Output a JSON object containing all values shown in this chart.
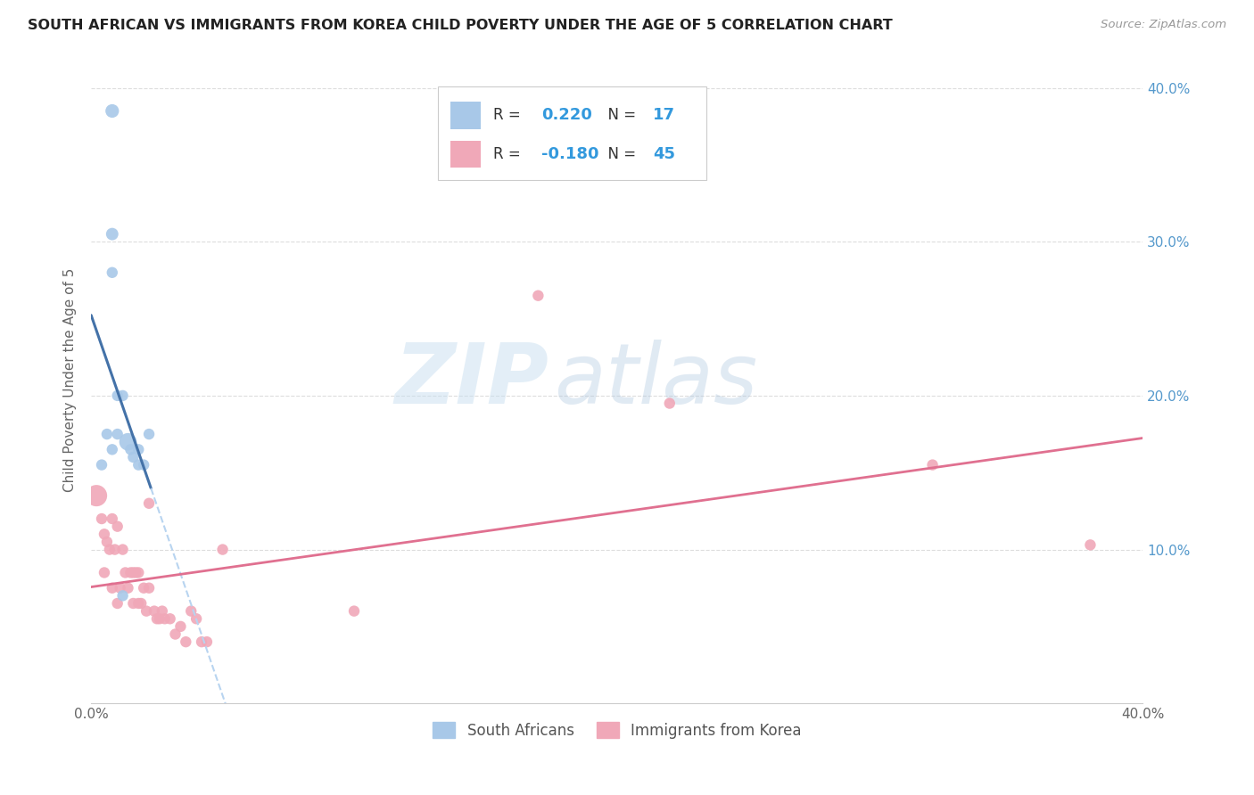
{
  "title": "SOUTH AFRICAN VS IMMIGRANTS FROM KOREA CHILD POVERTY UNDER THE AGE OF 5 CORRELATION CHART",
  "source": "Source: ZipAtlas.com",
  "ylabel": "Child Poverty Under the Age of 5",
  "xlim": [
    0.0,
    0.4
  ],
  "ylim": [
    0.0,
    0.42
  ],
  "background_color": "#ffffff",
  "grid_color": "#dddddd",
  "blue_color": "#a8c8e8",
  "pink_color": "#f0a8b8",
  "blue_line_color": "#4472a8",
  "pink_line_color": "#e07090",
  "blue_dashed_color": "#b8d4f0",
  "legend_R1": "0.220",
  "legend_N1": "17",
  "legend_R2": "-0.180",
  "legend_N2": "45",
  "label_south_africans": "South Africans",
  "label_immigrants": "Immigrants from Korea",
  "watermark_zip": "ZIP",
  "watermark_atlas": "atlas",
  "sa_x": [
    0.008,
    0.008,
    0.008,
    0.01,
    0.01,
    0.012,
    0.014,
    0.015,
    0.016,
    0.018,
    0.018,
    0.02,
    0.022,
    0.004,
    0.006,
    0.008,
    0.012
  ],
  "sa_y": [
    0.385,
    0.305,
    0.28,
    0.2,
    0.175,
    0.2,
    0.17,
    0.165,
    0.16,
    0.165,
    0.155,
    0.155,
    0.175,
    0.155,
    0.175,
    0.165,
    0.07
  ],
  "sa_sizes": [
    120,
    100,
    80,
    80,
    80,
    80,
    200,
    80,
    80,
    80,
    80,
    80,
    80,
    80,
    80,
    80,
    80
  ],
  "ko_x": [
    0.002,
    0.004,
    0.005,
    0.005,
    0.006,
    0.007,
    0.008,
    0.008,
    0.009,
    0.01,
    0.01,
    0.011,
    0.012,
    0.013,
    0.014,
    0.015,
    0.016,
    0.016,
    0.017,
    0.018,
    0.018,
    0.019,
    0.02,
    0.021,
    0.022,
    0.022,
    0.024,
    0.025,
    0.026,
    0.027,
    0.028,
    0.03,
    0.032,
    0.034,
    0.036,
    0.038,
    0.04,
    0.042,
    0.044,
    0.05,
    0.1,
    0.17,
    0.22,
    0.32,
    0.38
  ],
  "ko_y": [
    0.135,
    0.12,
    0.11,
    0.085,
    0.105,
    0.1,
    0.12,
    0.075,
    0.1,
    0.115,
    0.065,
    0.075,
    0.1,
    0.085,
    0.075,
    0.085,
    0.085,
    0.065,
    0.085,
    0.085,
    0.065,
    0.065,
    0.075,
    0.06,
    0.13,
    0.075,
    0.06,
    0.055,
    0.055,
    0.06,
    0.055,
    0.055,
    0.045,
    0.05,
    0.04,
    0.06,
    0.055,
    0.04,
    0.04,
    0.1,
    0.06,
    0.265,
    0.195,
    0.155,
    0.103
  ],
  "ko_sizes": [
    300,
    80,
    80,
    80,
    80,
    80,
    80,
    80,
    80,
    80,
    80,
    80,
    80,
    80,
    80,
    80,
    80,
    80,
    80,
    80,
    80,
    80,
    80,
    80,
    80,
    80,
    80,
    80,
    80,
    80,
    80,
    80,
    80,
    80,
    80,
    80,
    80,
    80,
    80,
    80,
    80,
    80,
    80,
    80,
    80
  ]
}
